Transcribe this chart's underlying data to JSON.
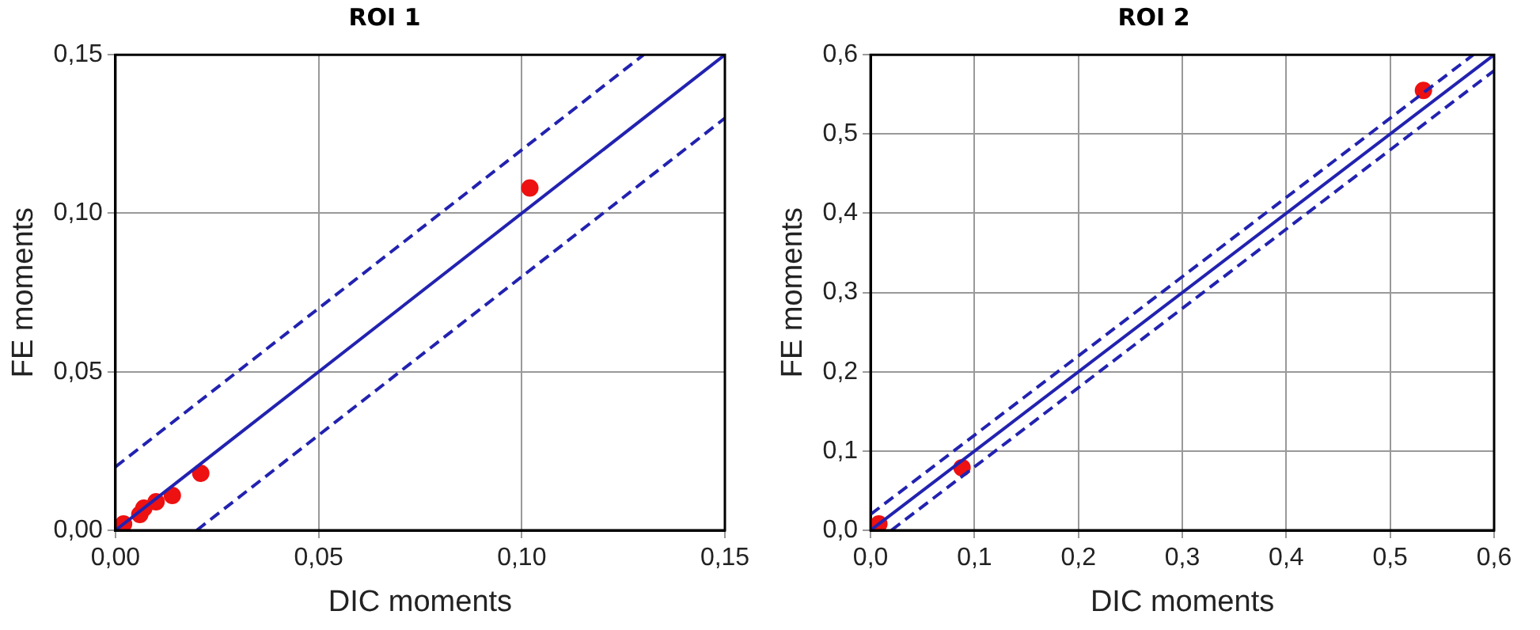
{
  "chart_data": [
    {
      "type": "scatter",
      "title": "ROI 1",
      "xlabel": "DIC moments",
      "ylabel": "FE moments",
      "xlim": [
        0,
        0.15
      ],
      "ylim": [
        0,
        0.15
      ],
      "xticks": [
        {
          "value": 0,
          "label": "0,00"
        },
        {
          "value": 0.05,
          "label": "0,05"
        },
        {
          "value": 0.1,
          "label": "0,10"
        },
        {
          "value": 0.15,
          "label": "0,15"
        }
      ],
      "yticks": [
        {
          "value": 0,
          "label": "0,00"
        },
        {
          "value": 0.05,
          "label": "0,05"
        },
        {
          "value": 0.1,
          "label": "0,10"
        },
        {
          "value": 0.15,
          "label": "0,15"
        }
      ],
      "grid": true,
      "series": [
        {
          "type": "line",
          "color": "#2222b0",
          "x": [
            0,
            0.15
          ],
          "values": [
            0,
            0.15
          ],
          "line_style": "solid",
          "marker": "none"
        },
        {
          "type": "line",
          "color": "#2222b0",
          "x": [
            0,
            0.13
          ],
          "values": [
            0.02,
            0.15
          ],
          "line_style": "dashed",
          "marker": "none"
        },
        {
          "type": "line",
          "color": "#2222b0",
          "x": [
            0.02,
            0.15
          ],
          "values": [
            0,
            0.13
          ],
          "line_style": "dashed",
          "marker": "none"
        },
        {
          "marker": "circle",
          "color": "#ee1111",
          "x": [
            0.002,
            0.006,
            0.007,
            0.01,
            0.014,
            0.021,
            0.102
          ],
          "values": [
            0.002,
            0.005,
            0.007,
            0.009,
            0.011,
            0.018,
            0.108
          ]
        }
      ]
    },
    {
      "type": "scatter",
      "title": "ROI 2",
      "xlabel": "DIC moments",
      "ylabel": "FE moments",
      "xlim": [
        0,
        0.6
      ],
      "ylim": [
        0,
        0.6
      ],
      "xticks": [
        {
          "value": 0,
          "label": "0,0"
        },
        {
          "value": 0.1,
          "label": "0,1"
        },
        {
          "value": 0.2,
          "label": "0,2"
        },
        {
          "value": 0.3,
          "label": "0,3"
        },
        {
          "value": 0.4,
          "label": "0,4"
        },
        {
          "value": 0.5,
          "label": "0,5"
        },
        {
          "value": 0.6,
          "label": "0,6"
        }
      ],
      "yticks": [
        {
          "value": 0,
          "label": "0,0"
        },
        {
          "value": 0.1,
          "label": "0,1"
        },
        {
          "value": 0.2,
          "label": "0,2"
        },
        {
          "value": 0.3,
          "label": "0,3"
        },
        {
          "value": 0.4,
          "label": "0,4"
        },
        {
          "value": 0.5,
          "label": "0,5"
        },
        {
          "value": 0.6,
          "label": "0,6"
        }
      ],
      "grid": true,
      "series": [
        {
          "type": "line",
          "color": "#2222b0",
          "x": [
            0,
            0.6
          ],
          "values": [
            0,
            0.6
          ],
          "line_style": "solid",
          "marker": "none"
        },
        {
          "type": "line",
          "color": "#2222b0",
          "x": [
            0,
            0.58
          ],
          "values": [
            0.02,
            0.6
          ],
          "line_style": "dashed",
          "marker": "none"
        },
        {
          "type": "line",
          "color": "#2222b0",
          "x": [
            0.02,
            0.6
          ],
          "values": [
            0,
            0.58
          ],
          "line_style": "dashed",
          "marker": "none"
        },
        {
          "marker": "circle",
          "color": "#ee1111",
          "x": [
            0.008,
            0.088,
            0.532
          ],
          "values": [
            0.008,
            0.079,
            0.555
          ]
        }
      ]
    }
  ]
}
